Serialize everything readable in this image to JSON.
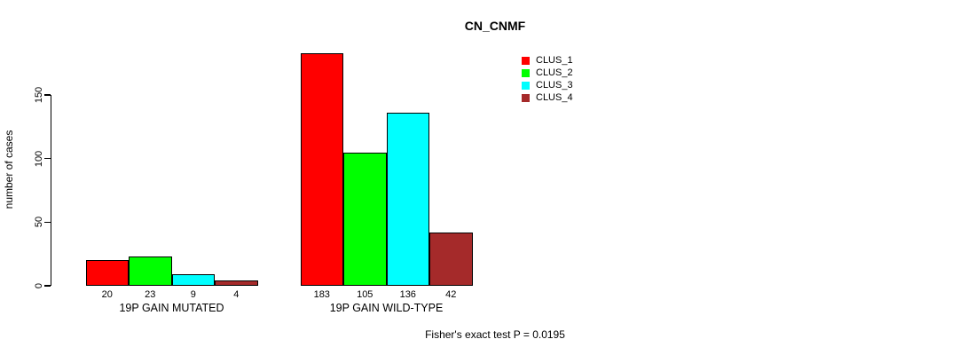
{
  "chart_data": {
    "type": "bar",
    "title": "CN_CNMF",
    "xlabel": "",
    "ylabel": "number of cases",
    "ylim": [
      0,
      150
    ],
    "yticks": [
      0,
      50,
      100,
      150
    ],
    "grid": false,
    "legend_position": "top-right",
    "bar_value_labels_shown": true,
    "categories": [
      "19P GAIN MUTATED",
      "19P GAIN WILD-TYPE"
    ],
    "series": [
      {
        "name": "CLUS_1",
        "color": "#FF0000",
        "values": [
          20,
          183
        ]
      },
      {
        "name": "CLUS_2",
        "color": "#00FF00",
        "values": [
          23,
          105
        ]
      },
      {
        "name": "CLUS_3",
        "color": "#00FFFF",
        "values": [
          9,
          136
        ]
      },
      {
        "name": "CLUS_4",
        "color": "#A52A2A",
        "values": [
          4,
          42
        ]
      }
    ],
    "annotation": "Fisher's exact test P = 0.0195"
  }
}
